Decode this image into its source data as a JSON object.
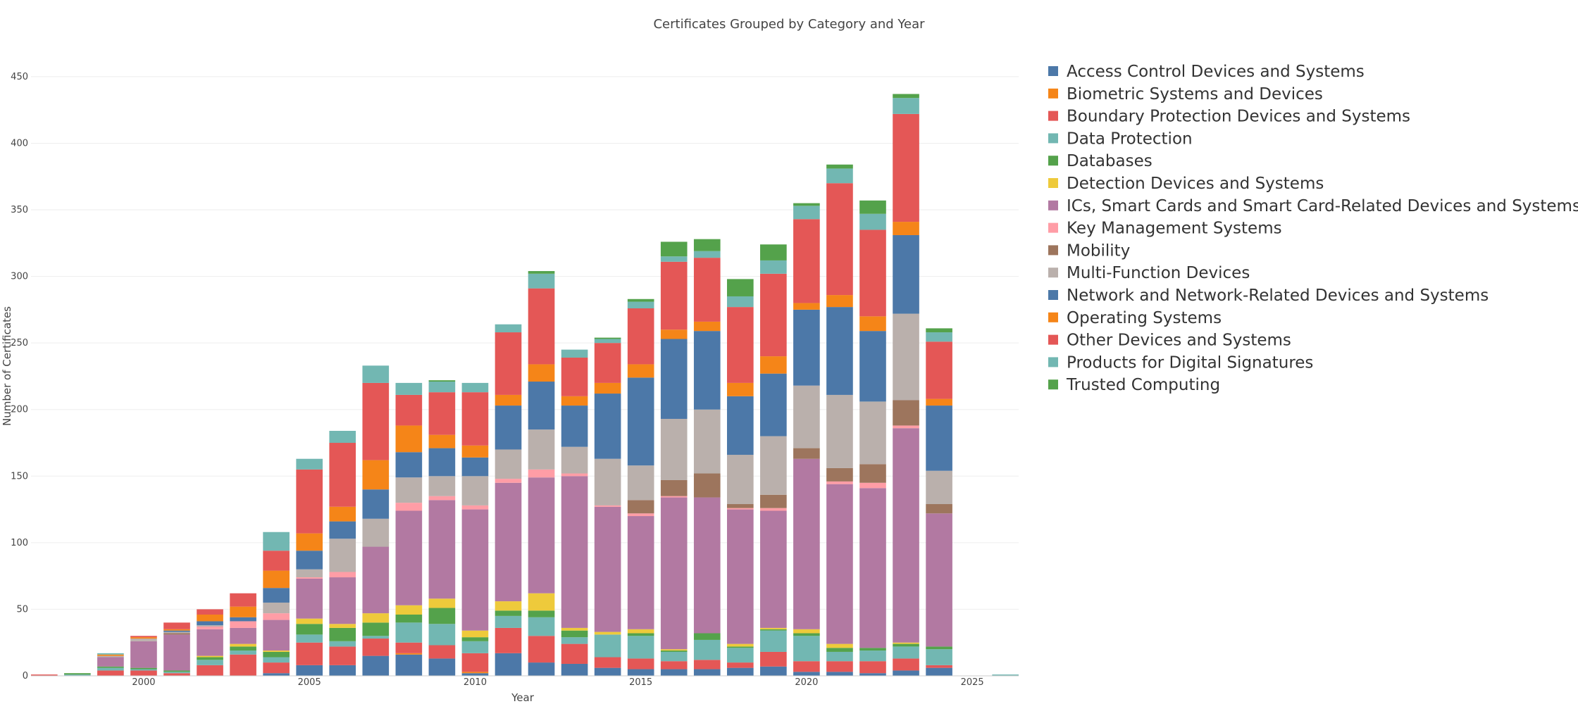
{
  "chart_data": {
    "type": "bar",
    "stacked": true,
    "title": "Certificates Grouped by Category and Year",
    "xlabel": "Year",
    "ylabel": "Number of Certificates",
    "xlim": [
      1996.6,
      2026.4
    ],
    "ylim": [
      0,
      460
    ],
    "yticks": [
      0,
      50,
      100,
      150,
      200,
      250,
      300,
      350,
      400,
      450
    ],
    "xticks": [
      2000,
      2005,
      2010,
      2015,
      2020,
      2025
    ],
    "grid": true,
    "legend_position": "right",
    "categories": [
      1997,
      1998,
      1999,
      2000,
      2001,
      2002,
      2003,
      2004,
      2005,
      2006,
      2007,
      2008,
      2009,
      2010,
      2011,
      2012,
      2013,
      2014,
      2015,
      2016,
      2017,
      2018,
      2019,
      2020,
      2021,
      2022,
      2023,
      2024,
      2025,
      2026
    ],
    "series": [
      {
        "name": "Access Control Devices and Systems",
        "color": "#4c78a8",
        "values": [
          0,
          0,
          0,
          0,
          0,
          0,
          0,
          2,
          8,
          8,
          15,
          16,
          13,
          2,
          17,
          10,
          9,
          6,
          5,
          5,
          5,
          6,
          7,
          3,
          3,
          2,
          4,
          6,
          0,
          0
        ]
      },
      {
        "name": "Biometric Systems and Devices",
        "color": "#f58518",
        "values": [
          0,
          0,
          0,
          0,
          0,
          0,
          0,
          0,
          0,
          0,
          0,
          1,
          0,
          1,
          0,
          0,
          0,
          0,
          0,
          0,
          0,
          0,
          0,
          0,
          0,
          0,
          0,
          0,
          0,
          0
        ]
      },
      {
        "name": "Boundary Protection Devices and Systems",
        "color": "#e45756",
        "values": [
          1,
          0,
          4,
          4,
          2,
          8,
          16,
          8,
          17,
          14,
          13,
          8,
          10,
          14,
          19,
          20,
          15,
          8,
          8,
          6,
          7,
          4,
          11,
          8,
          8,
          9,
          9,
          2,
          0,
          0
        ]
      },
      {
        "name": "Data Protection",
        "color": "#72b7b2",
        "values": [
          0,
          1,
          2,
          1,
          1,
          4,
          3,
          4,
          6,
          4,
          2,
          15,
          16,
          9,
          9,
          14,
          5,
          17,
          17,
          7,
          15,
          11,
          16,
          19,
          7,
          8,
          9,
          12,
          0,
          1
        ]
      },
      {
        "name": "Databases",
        "color": "#54a24b",
        "values": [
          0,
          1,
          1,
          1,
          1,
          2,
          3,
          4,
          8,
          10,
          10,
          6,
          12,
          3,
          4,
          5,
          5,
          0,
          2,
          1,
          5,
          1,
          1,
          2,
          3,
          2,
          2,
          2,
          0,
          0
        ]
      },
      {
        "name": "Detection Devices and Systems",
        "color": "#eeca3b",
        "values": [
          0,
          0,
          0,
          0,
          0,
          1,
          2,
          1,
          4,
          3,
          7,
          7,
          7,
          5,
          7,
          13,
          2,
          2,
          3,
          1,
          0,
          2,
          1,
          3,
          3,
          0,
          1,
          0,
          0,
          0
        ]
      },
      {
        "name": "ICs, Smart Cards and Smart Card-Related Devices and Systems",
        "color": "#b279a2",
        "values": [
          0,
          0,
          7,
          20,
          27,
          20,
          12,
          23,
          30,
          35,
          50,
          71,
          74,
          91,
          89,
          87,
          114,
          94,
          85,
          114,
          102,
          101,
          88,
          128,
          120,
          120,
          161,
          100,
          0,
          0
        ]
      },
      {
        "name": "Key Management Systems",
        "color": "#ff9da6",
        "values": [
          0,
          0,
          0,
          0,
          0,
          2,
          5,
          5,
          1,
          4,
          0,
          6,
          3,
          3,
          3,
          6,
          2,
          1,
          2,
          1,
          0,
          1,
          2,
          0,
          2,
          4,
          2,
          0,
          0,
          0
        ]
      },
      {
        "name": "Mobility",
        "color": "#9d755d",
        "values": [
          0,
          0,
          0,
          0,
          1,
          0,
          0,
          0,
          0,
          0,
          0,
          0,
          0,
          0,
          0,
          0,
          0,
          0,
          10,
          12,
          18,
          3,
          10,
          8,
          10,
          14,
          19,
          7,
          0,
          0
        ]
      },
      {
        "name": "Multi-Function Devices",
        "color": "#bab0ac",
        "values": [
          0,
          0,
          1,
          2,
          1,
          1,
          0,
          8,
          6,
          25,
          21,
          19,
          15,
          22,
          22,
          30,
          20,
          35,
          26,
          46,
          48,
          37,
          44,
          47,
          55,
          47,
          65,
          25,
          0,
          0
        ]
      },
      {
        "name": "Network and Network-Related Devices and Systems",
        "color": "#4c78a8",
        "values": [
          0,
          0,
          0,
          0,
          1,
          3,
          3,
          11,
          14,
          13,
          22,
          19,
          21,
          14,
          33,
          36,
          31,
          49,
          66,
          60,
          59,
          44,
          47,
          57,
          66,
          53,
          59,
          49,
          0,
          0
        ]
      },
      {
        "name": "Operating Systems",
        "color": "#f58518",
        "values": [
          0,
          0,
          1,
          1,
          1,
          5,
          8,
          13,
          13,
          11,
          22,
          20,
          10,
          9,
          8,
          13,
          7,
          8,
          10,
          7,
          7,
          10,
          13,
          5,
          9,
          11,
          10,
          5,
          0,
          0
        ]
      },
      {
        "name": "Other Devices and Systems",
        "color": "#e45756",
        "values": [
          0,
          0,
          0,
          1,
          5,
          4,
          10,
          15,
          48,
          48,
          58,
          23,
          32,
          40,
          47,
          57,
          29,
          30,
          42,
          51,
          48,
          57,
          62,
          63,
          84,
          65,
          81,
          43,
          0,
          0
        ]
      },
      {
        "name": "Products for Digital Signatures",
        "color": "#72b7b2",
        "values": [
          0,
          0,
          1,
          0,
          0,
          0,
          0,
          14,
          8,
          9,
          13,
          9,
          8,
          7,
          6,
          11,
          6,
          3,
          5,
          4,
          5,
          8,
          10,
          10,
          11,
          12,
          12,
          7,
          0,
          0
        ]
      },
      {
        "name": "Trusted Computing",
        "color": "#54a24b",
        "values": [
          0,
          0,
          0,
          0,
          0,
          0,
          0,
          0,
          0,
          0,
          0,
          0,
          1,
          0,
          0,
          2,
          0,
          1,
          2,
          11,
          9,
          13,
          12,
          2,
          3,
          10,
          3,
          3,
          0,
          0
        ]
      }
    ]
  }
}
